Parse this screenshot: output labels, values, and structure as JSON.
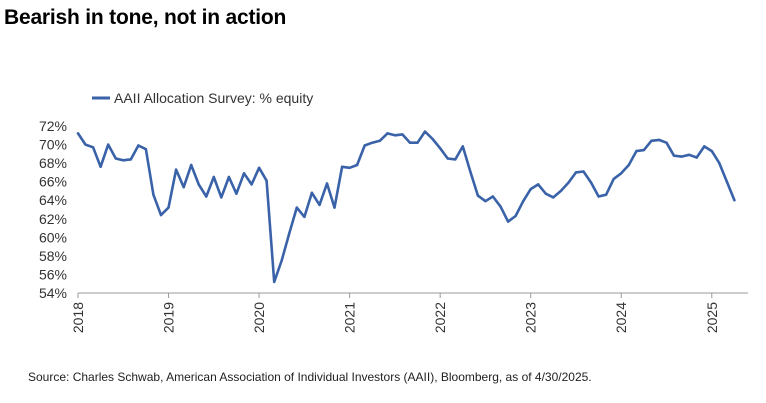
{
  "title": "Bearish in tone, not in action",
  "source": "Source: Charles Schwab, American Association of Individual Investors (AAII), Bloomberg, as of 4/30/2025.",
  "colors": {
    "line": "#3a62a8",
    "axis": "#999999",
    "text": "#333333"
  },
  "chart_data": {
    "type": "line",
    "title": "Bearish in tone, not in action",
    "xlabel": "",
    "ylabel": "",
    "ylim": [
      54,
      72
    ],
    "xlim": [
      2018.0,
      2025.4
    ],
    "y_ticks": [
      54,
      56,
      58,
      60,
      62,
      64,
      66,
      68,
      70,
      72
    ],
    "y_tick_labels": [
      "54%",
      "56%",
      "58%",
      "60%",
      "62%",
      "64%",
      "66%",
      "68%",
      "70%",
      "72%"
    ],
    "x_ticks": [
      2018,
      2019,
      2020,
      2021,
      2022,
      2023,
      2024,
      2025
    ],
    "x_tick_labels": [
      "2018",
      "2019",
      "2020",
      "2021",
      "2022",
      "2023",
      "2024",
      "2025"
    ],
    "legend": "top-left",
    "grid": false,
    "series": [
      {
        "name": "AAII Allocation Survey: % equity",
        "color": "#3a62a8",
        "x": [
          2018.0,
          2018.083,
          2018.167,
          2018.25,
          2018.333,
          2018.417,
          2018.5,
          2018.583,
          2018.667,
          2018.75,
          2018.833,
          2018.917,
          2019.0,
          2019.083,
          2019.167,
          2019.25,
          2019.333,
          2019.417,
          2019.5,
          2019.583,
          2019.667,
          2019.75,
          2019.833,
          2019.917,
          2020.0,
          2020.083,
          2020.167,
          2020.25,
          2020.333,
          2020.417,
          2020.5,
          2020.583,
          2020.667,
          2020.75,
          2020.833,
          2020.917,
          2021.0,
          2021.083,
          2021.167,
          2021.25,
          2021.333,
          2021.417,
          2021.5,
          2021.583,
          2021.667,
          2021.75,
          2021.833,
          2021.917,
          2022.0,
          2022.083,
          2022.167,
          2022.25,
          2022.333,
          2022.417,
          2022.5,
          2022.583,
          2022.667,
          2022.75,
          2022.833,
          2022.917,
          2023.0,
          2023.083,
          2023.167,
          2023.25,
          2023.333,
          2023.417,
          2023.5,
          2023.583,
          2023.667,
          2023.75,
          2023.833,
          2023.917,
          2024.0,
          2024.083,
          2024.167,
          2024.25,
          2024.333,
          2024.417,
          2024.5,
          2024.583,
          2024.667,
          2024.75,
          2024.833,
          2024.917,
          2025.0,
          2025.083,
          2025.167,
          2025.25
        ],
        "values": [
          71.2,
          70.0,
          69.7,
          67.6,
          70.0,
          68.5,
          68.3,
          68.4,
          69.9,
          69.5,
          64.6,
          62.4,
          63.2,
          67.3,
          65.4,
          67.8,
          65.7,
          64.4,
          66.5,
          64.3,
          66.5,
          64.7,
          66.9,
          65.7,
          67.5,
          66.1,
          55.2,
          57.5,
          60.4,
          63.2,
          62.2,
          64.8,
          63.5,
          65.8,
          63.2,
          67.6,
          67.5,
          67.8,
          69.9,
          70.2,
          70.4,
          71.2,
          71.0,
          71.1,
          70.2,
          70.2,
          71.4,
          70.6,
          69.6,
          68.5,
          68.4,
          69.8,
          67.1,
          64.5,
          63.9,
          64.4,
          63.3,
          61.7,
          62.3,
          63.9,
          65.2,
          65.7,
          64.7,
          64.3,
          65.0,
          65.9,
          67.0,
          67.1,
          65.9,
          64.4,
          64.6,
          66.3,
          66.9,
          67.8,
          69.3,
          69.4,
          70.4,
          70.5,
          70.2,
          68.8,
          68.7,
          68.9,
          68.6,
          69.8,
          69.3,
          68.0,
          66.0,
          64.0
        ]
      }
    ]
  }
}
